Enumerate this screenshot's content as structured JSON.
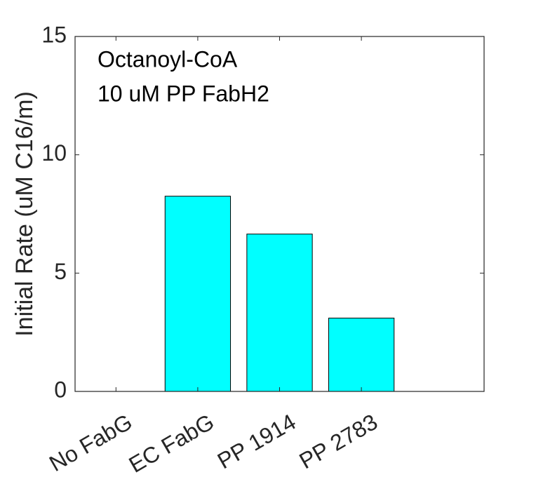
{
  "chart_data": {
    "type": "bar",
    "categories": [
      "No FabG",
      "EC FabG",
      "PP 1914",
      "PP 2783"
    ],
    "values": [
      0,
      8.25,
      6.65,
      3.1
    ],
    "title": "",
    "xlabel": "",
    "ylabel": "Initial Rate (uM C16/m)",
    "xlim": [
      0.5,
      5.5
    ],
    "ylim": [
      0,
      15
    ],
    "yticks": [
      0,
      5,
      10,
      15
    ],
    "ytick_labels": [
      "0",
      "5",
      "10",
      "15"
    ],
    "annotations": [
      "Octanoyl-CoA",
      "10 uM PP FabH2"
    ],
    "grid": false,
    "legend": "none",
    "bar_color": "#00ffff",
    "edge_color": "#000000",
    "axis_color": "#262626"
  }
}
